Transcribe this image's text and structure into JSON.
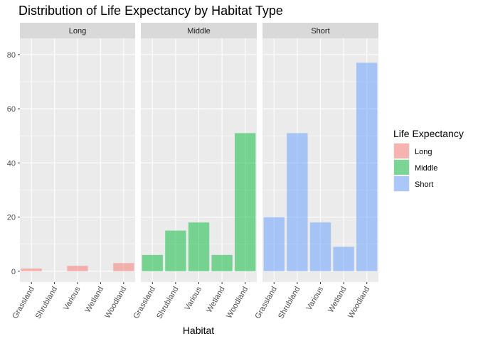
{
  "chart_data": {
    "type": "bar",
    "title": "Distribution of Life Expectancy by Habitat Type",
    "xlabel": "Habitat",
    "ylabel": "",
    "ylim": [
      -4,
      86
    ],
    "yticks": [
      0,
      20,
      40,
      60,
      80
    ],
    "grid": true,
    "legend_position": "right",
    "categories": [
      "Grassland",
      "Shrubland",
      "Various",
      "Wetland",
      "Woodland"
    ],
    "legend": {
      "title": "Life Expectancy",
      "entries": [
        "Long",
        "Middle",
        "Short"
      ]
    },
    "facets": [
      {
        "name": "Long",
        "color": "#F8766D",
        "values": [
          1,
          0,
          2,
          0,
          3
        ]
      },
      {
        "name": "Middle",
        "color": "#00BA38",
        "values": [
          6,
          15,
          18,
          6,
          51
        ]
      },
      {
        "name": "Short",
        "color": "#619CFF",
        "values": [
          20,
          51,
          18,
          9,
          77
        ]
      }
    ]
  },
  "colors": {
    "panel_background": "#EBEBEB",
    "strip_background": "#D9D9D9",
    "grid_major": "#FFFFFF",
    "bar_alpha": 0.5
  }
}
